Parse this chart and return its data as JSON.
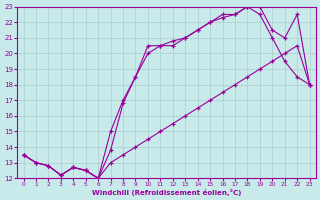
{
  "xlabel": "Windchill (Refroidissement éolien,°C)",
  "xlim": [
    -0.5,
    23.5
  ],
  "ylim": [
    12,
    23
  ],
  "xticks": [
    0,
    1,
    2,
    3,
    4,
    5,
    6,
    7,
    8,
    9,
    10,
    11,
    12,
    13,
    14,
    15,
    16,
    17,
    18,
    19,
    20,
    21,
    22,
    23
  ],
  "yticks": [
    12,
    13,
    14,
    15,
    16,
    17,
    18,
    19,
    20,
    21,
    22,
    23
  ],
  "bg_color": "#c8eaea",
  "line_color": "#990099",
  "grid_color": "#aacccc",
  "line1_x": [
    0,
    1,
    2,
    3,
    4,
    5,
    6,
    7,
    8,
    9,
    10,
    11,
    12,
    13,
    14,
    15,
    16,
    17,
    18,
    19,
    20,
    21,
    22,
    23
  ],
  "line1_y": [
    13.5,
    13.0,
    12.8,
    12.2,
    12.7,
    12.5,
    12.0,
    13.0,
    13.5,
    14.0,
    14.5,
    15.0,
    15.5,
    16.0,
    16.5,
    17.0,
    17.5,
    18.0,
    18.5,
    19.0,
    19.5,
    20.0,
    20.5,
    18.0
  ],
  "line2_x": [
    0,
    1,
    2,
    3,
    4,
    5,
    6,
    7,
    8,
    9,
    10,
    11,
    12,
    13,
    14,
    15,
    16,
    17,
    18,
    19,
    20,
    21,
    22,
    23
  ],
  "line2_y": [
    13.5,
    13.0,
    12.8,
    12.2,
    12.7,
    12.5,
    12.0,
    13.8,
    16.8,
    18.5,
    20.5,
    20.5,
    20.5,
    21.0,
    21.5,
    22.0,
    22.5,
    22.5,
    23.0,
    22.5,
    21.0,
    19.5,
    18.5,
    18.0
  ],
  "line3_x": [
    0,
    1,
    2,
    3,
    4,
    5,
    6,
    7,
    8,
    9,
    10,
    11,
    12,
    13,
    14,
    15,
    16,
    17,
    18,
    19,
    20,
    21,
    22,
    23
  ],
  "line3_y": [
    13.5,
    13.0,
    12.8,
    12.2,
    12.7,
    12.5,
    12.0,
    15.0,
    17.0,
    18.5,
    20.0,
    20.5,
    20.8,
    21.0,
    21.5,
    22.0,
    22.3,
    22.5,
    23.0,
    23.0,
    21.5,
    21.0,
    22.5,
    18.0
  ]
}
